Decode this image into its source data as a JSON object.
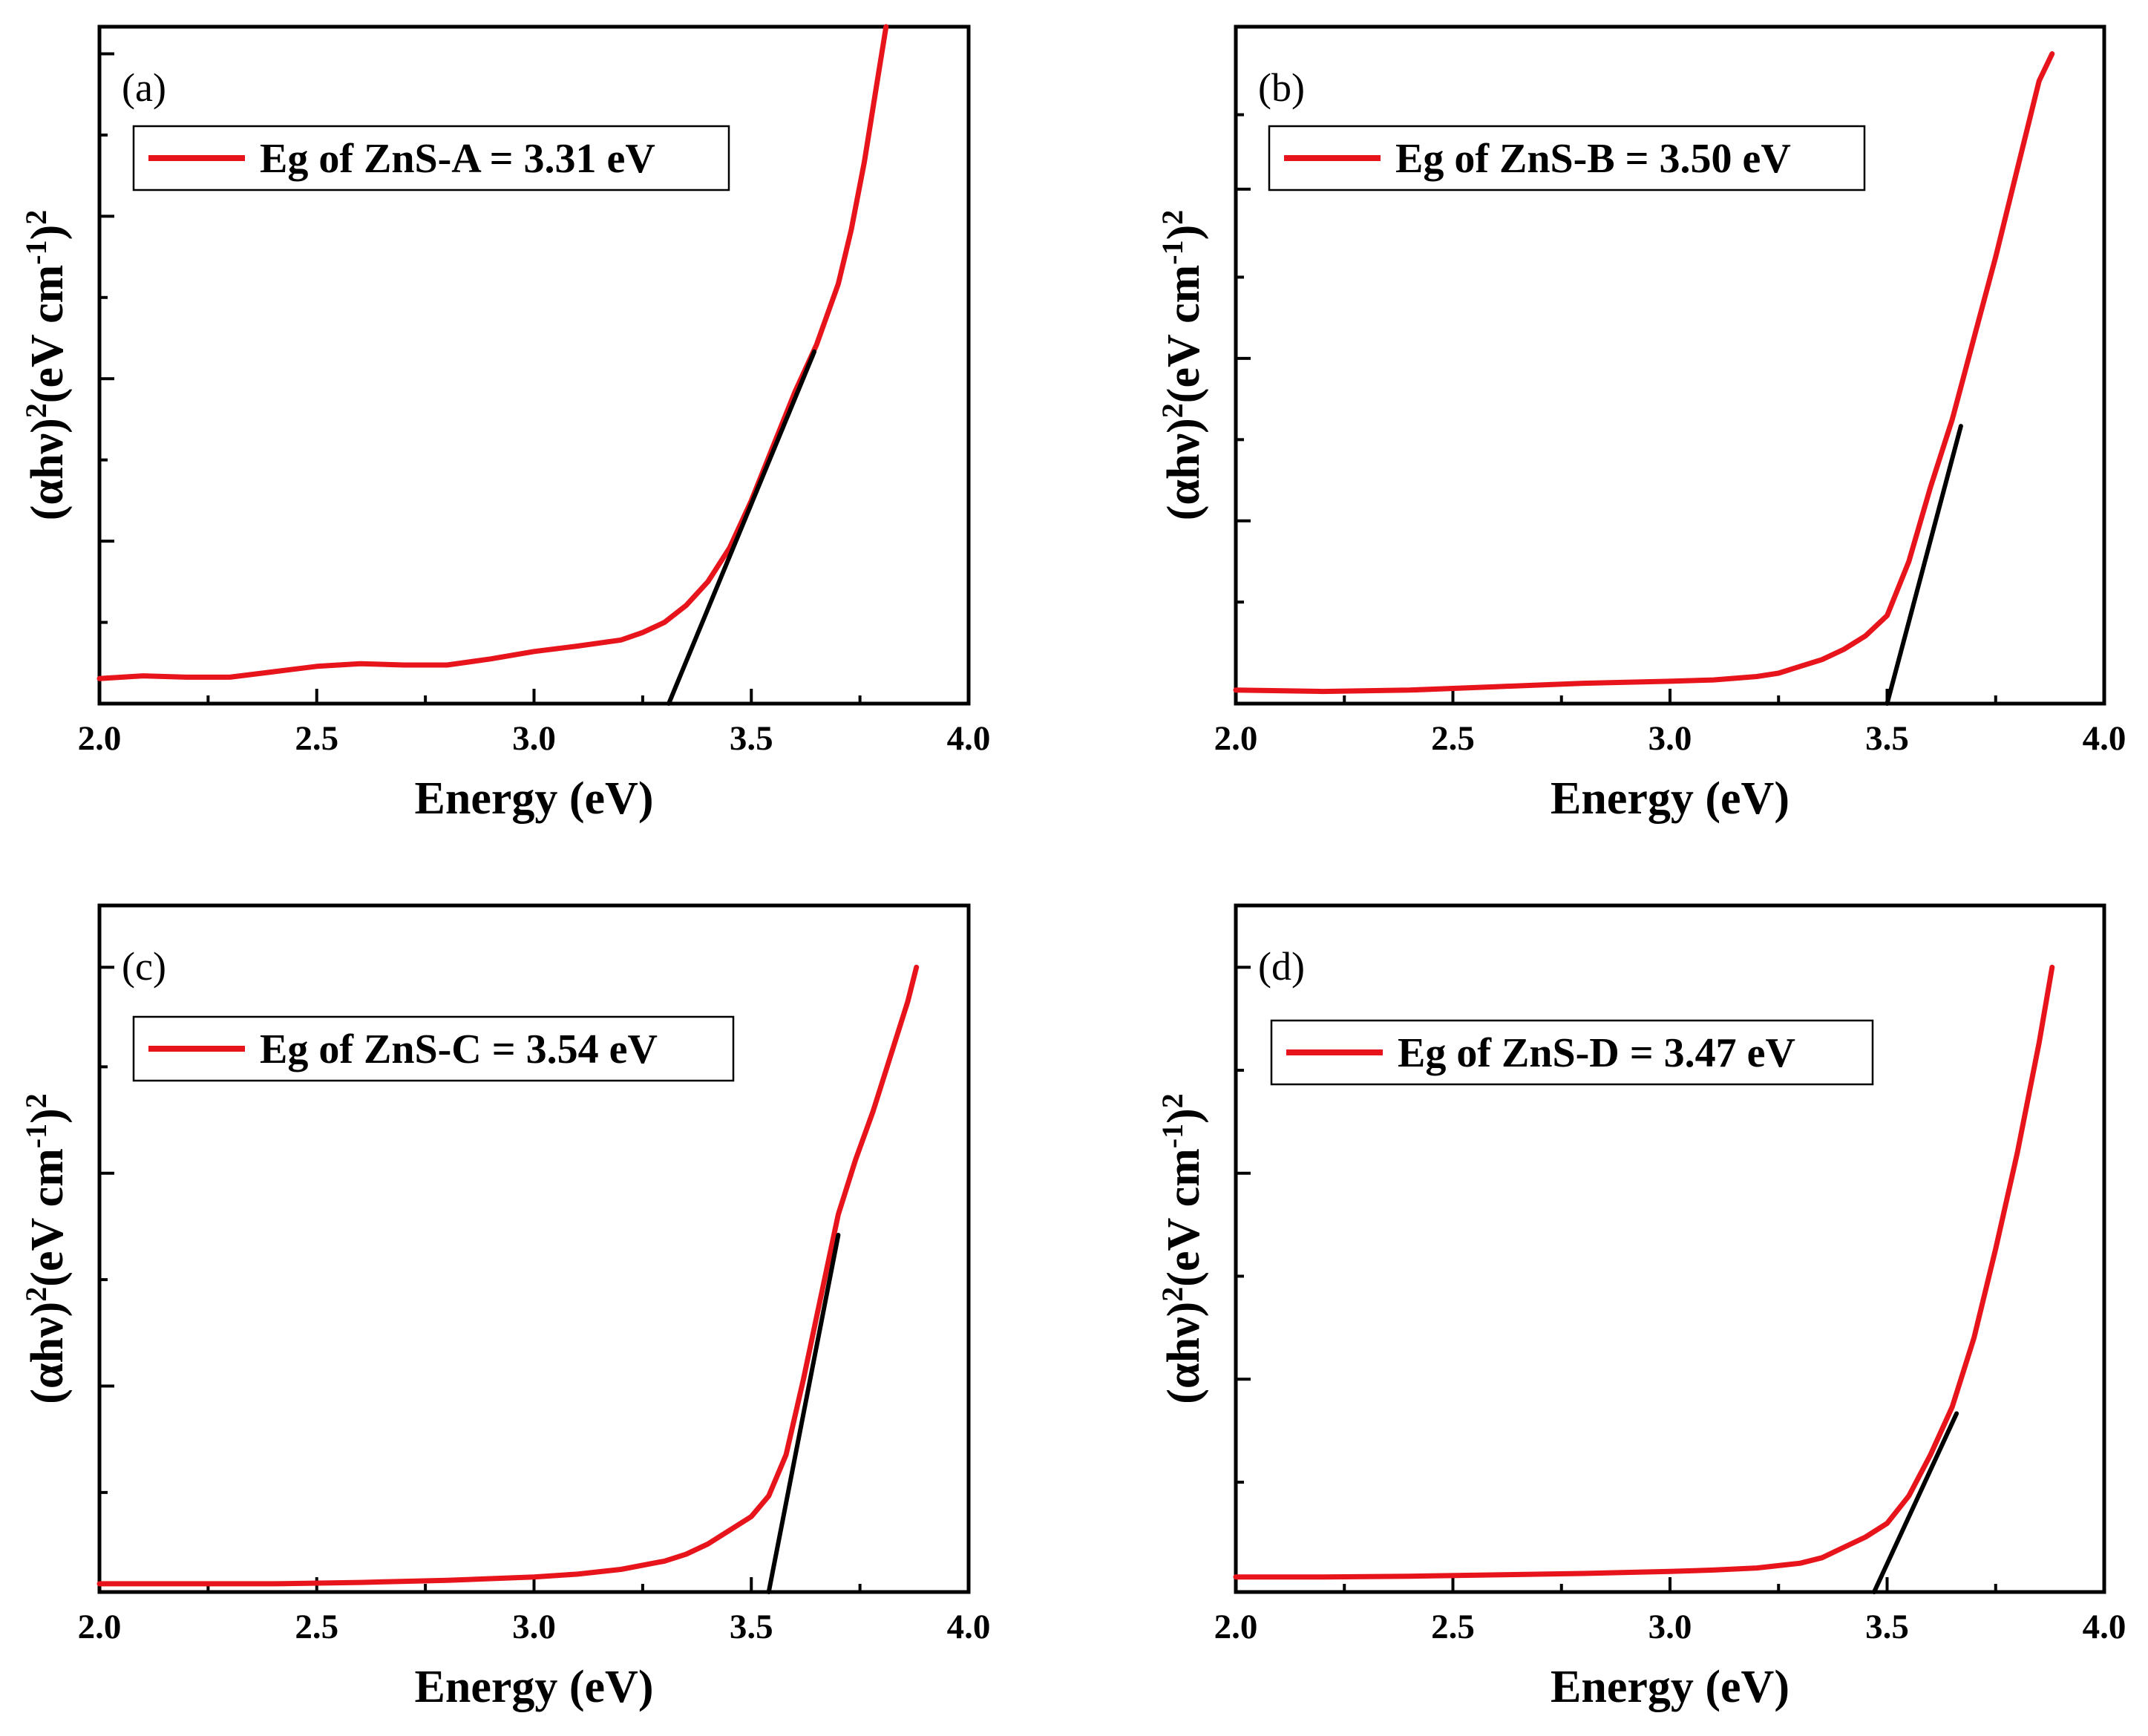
{
  "chart_data": [
    {
      "type": "line",
      "panel_label": "(a)",
      "legend": "Eg of ZnS-A = 3.31 eV",
      "xlabel": "Energy (eV)",
      "ylabel": {
        "pre": "(αhν)",
        "sup1": "2",
        "mid": "(eV cm",
        "sup2": "-1",
        "post": ")",
        "sup3": "2"
      },
      "xlim": [
        2.0,
        4.0
      ],
      "ylim": [
        0,
        1
      ],
      "xticks": [
        "2.0",
        "2.5",
        "3.0",
        "3.5",
        "4.0"
      ],
      "y_major_ticks": [
        0.24,
        0.48,
        0.72,
        0.96
      ],
      "series": [
        {
          "name": "Eg of ZnS-A = 3.31 eV",
          "color": "#e8141b",
          "x": [
            2.0,
            2.1,
            2.2,
            2.3,
            2.4,
            2.5,
            2.6,
            2.7,
            2.8,
            2.9,
            3.0,
            3.1,
            3.2,
            3.25,
            3.3,
            3.35,
            3.4,
            3.45,
            3.5,
            3.55,
            3.6,
            3.65,
            3.7,
            3.73,
            3.76,
            3.79,
            3.81
          ],
          "y": [
            0.037,
            0.041,
            0.039,
            0.039,
            0.047,
            0.055,
            0.059,
            0.057,
            0.057,
            0.066,
            0.077,
            0.085,
            0.094,
            0.105,
            0.12,
            0.145,
            0.18,
            0.23,
            0.3,
            0.38,
            0.46,
            0.53,
            0.62,
            0.7,
            0.8,
            0.92,
            1.0
          ]
        },
        {
          "name": "fit",
          "color": "#000000",
          "x": [
            3.31,
            3.645
          ],
          "y": [
            0.0,
            0.52
          ]
        }
      ]
    },
    {
      "type": "line",
      "panel_label": "(b)",
      "legend": "Eg of ZnS-B = 3.50 eV",
      "xlabel": "Energy (eV)",
      "ylabel": {
        "pre": "(αhν)",
        "sup1": "2",
        "mid": "(eV cm",
        "sup2": "-1",
        "post": ")",
        "sup3": "2"
      },
      "xlim": [
        2.0,
        4.0
      ],
      "ylim": [
        0,
        1
      ],
      "xticks": [
        "2.0",
        "2.5",
        "3.0",
        "3.5",
        "4.0"
      ],
      "y_major_ticks": [
        0.27,
        0.51,
        0.76
      ],
      "series": [
        {
          "name": "Eg of ZnS-B = 3.50 eV",
          "color": "#e8141b",
          "x": [
            2.0,
            2.2,
            2.4,
            2.6,
            2.8,
            3.0,
            3.1,
            3.2,
            3.25,
            3.3,
            3.35,
            3.4,
            3.45,
            3.5,
            3.55,
            3.6,
            3.65,
            3.7,
            3.75,
            3.8,
            3.85,
            3.88
          ],
          "y": [
            0.02,
            0.018,
            0.02,
            0.025,
            0.03,
            0.033,
            0.035,
            0.04,
            0.045,
            0.055,
            0.065,
            0.08,
            0.1,
            0.13,
            0.21,
            0.32,
            0.42,
            0.54,
            0.66,
            0.79,
            0.92,
            0.96
          ]
        },
        {
          "name": "fit",
          "color": "#000000",
          "x": [
            3.5,
            3.67
          ],
          "y": [
            0.0,
            0.41
          ]
        }
      ]
    },
    {
      "type": "line",
      "panel_label": "(c)",
      "legend": "Eg of ZnS-C = 3.54 eV",
      "xlabel": "Energy (eV)",
      "ylabel": {
        "pre": "(αhν)",
        "sup1": "2",
        "mid": "(eV cm",
        "sup2": "-1",
        "post": ")",
        "sup3": "2"
      },
      "xlim": [
        2.0,
        4.0
      ],
      "ylim": [
        0,
        1
      ],
      "xticks": [
        "2.0",
        "2.5",
        "3.0",
        "3.5",
        "4.0"
      ],
      "y_major_ticks": [
        0.3,
        0.61,
        0.91
      ],
      "series": [
        {
          "name": "Eg of ZnS-C = 3.54 eV",
          "color": "#e8141b",
          "x": [
            2.0,
            2.2,
            2.4,
            2.6,
            2.8,
            3.0,
            3.1,
            3.2,
            3.3,
            3.35,
            3.4,
            3.45,
            3.5,
            3.54,
            3.58,
            3.62,
            3.66,
            3.7,
            3.74,
            3.78,
            3.82,
            3.86,
            3.88
          ],
          "y": [
            0.012,
            0.012,
            0.012,
            0.014,
            0.017,
            0.022,
            0.026,
            0.033,
            0.045,
            0.055,
            0.07,
            0.09,
            0.11,
            0.14,
            0.2,
            0.31,
            0.43,
            0.55,
            0.63,
            0.7,
            0.78,
            0.86,
            0.91
          ]
        },
        {
          "name": "fit",
          "color": "#000000",
          "x": [
            3.54,
            3.7
          ],
          "y": [
            0.0,
            0.52
          ]
        }
      ]
    },
    {
      "type": "line",
      "panel_label": "(d)",
      "legend": "Eg of ZnS-D = 3.47 eV",
      "xlabel": "Energy (eV)",
      "ylabel": {
        "pre": "(αhν)",
        "sup1": "2",
        "mid": "(eV cm",
        "sup2": "-1",
        "post": ")",
        "sup3": "2"
      },
      "xlim": [
        2.0,
        4.0
      ],
      "ylim": [
        0,
        1
      ],
      "xticks": [
        "2.0",
        "2.5",
        "3.0",
        "3.5",
        "4.0"
      ],
      "y_major_ticks": [
        0.31,
        0.61,
        0.91
      ],
      "series": [
        {
          "name": "Eg of ZnS-D = 3.47 eV",
          "color": "#e8141b",
          "x": [
            2.0,
            2.2,
            2.4,
            2.6,
            2.8,
            3.0,
            3.1,
            3.2,
            3.3,
            3.35,
            3.4,
            3.45,
            3.5,
            3.55,
            3.6,
            3.65,
            3.7,
            3.75,
            3.8,
            3.85,
            3.88
          ],
          "y": [
            0.022,
            0.022,
            0.023,
            0.025,
            0.027,
            0.03,
            0.032,
            0.035,
            0.042,
            0.05,
            0.065,
            0.08,
            0.1,
            0.14,
            0.2,
            0.27,
            0.37,
            0.5,
            0.64,
            0.8,
            0.91
          ]
        },
        {
          "name": "fit",
          "color": "#000000",
          "x": [
            3.47,
            3.66
          ],
          "y": [
            0.0,
            0.26
          ]
        }
      ]
    }
  ]
}
